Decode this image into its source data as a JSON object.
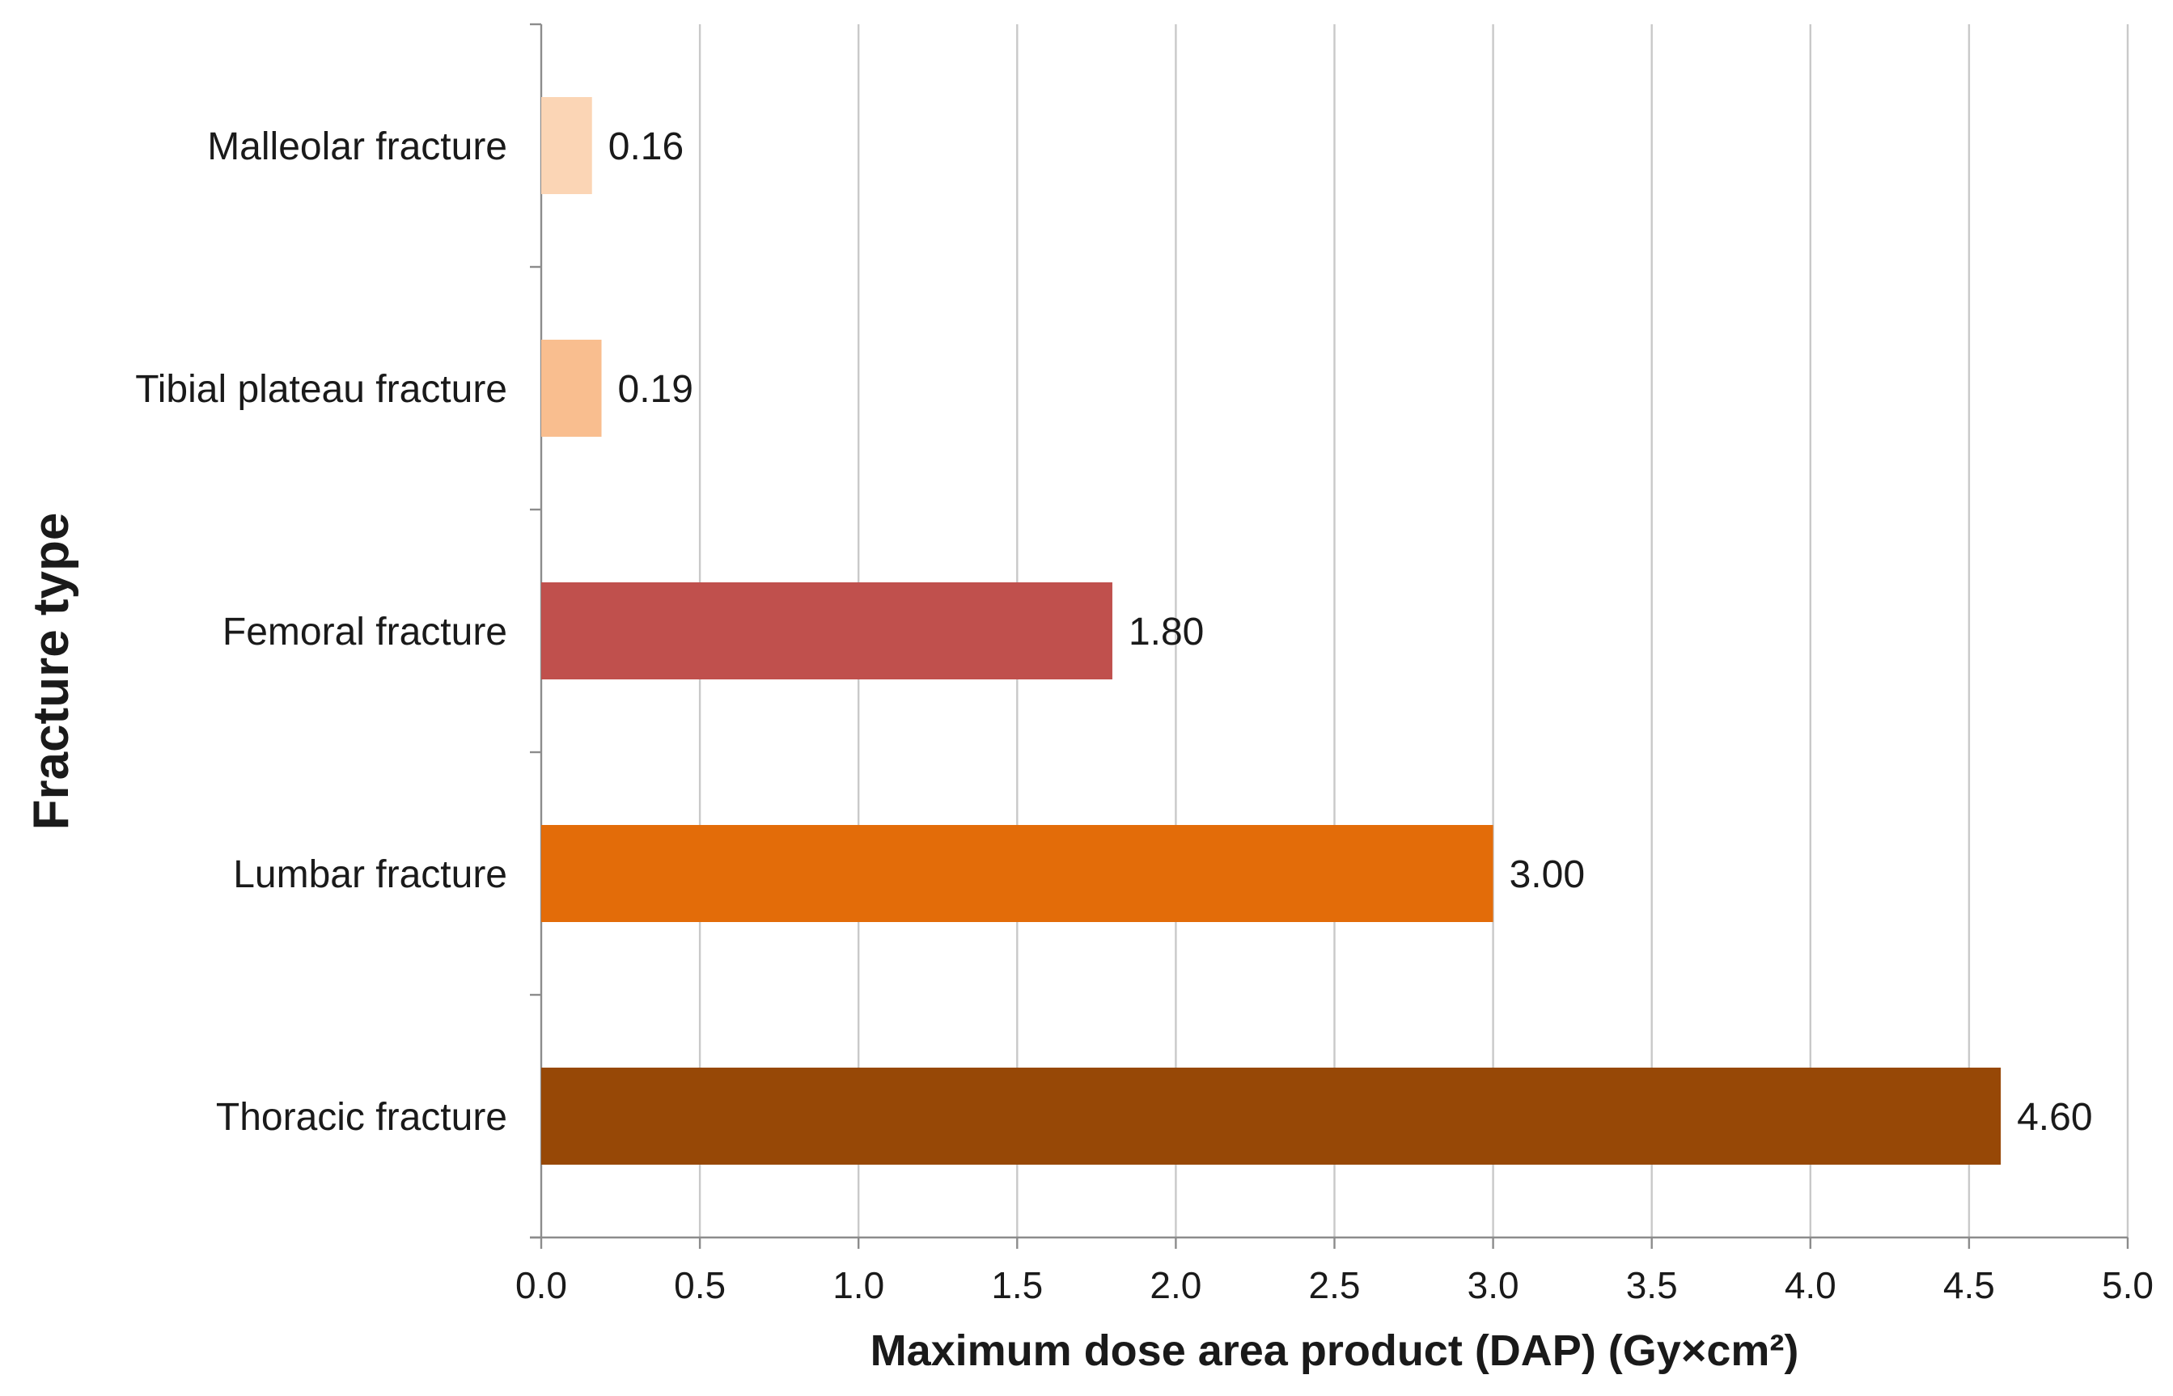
{
  "chart_data": {
    "type": "bar",
    "orientation": "horizontal",
    "categories": [
      "Malleolar fracture",
      "Tibial plateau fracture",
      "Femoral fracture",
      "Lumbar fracture",
      "Thoracic fracture"
    ],
    "values": [
      0.16,
      0.19,
      1.8,
      3.0,
      4.6
    ],
    "value_labels": [
      "0.16",
      "0.19",
      "1.80",
      "3.00",
      "4.60"
    ],
    "bar_colors": [
      "#fbd5b5",
      "#f9be8f",
      "#c0504d",
      "#e36c09",
      "#974806"
    ],
    "xlabel": "Maximum dose area product (DAP) (Gy×cm²)",
    "ylabel": "Fracture type",
    "xlim": [
      0,
      5.0
    ],
    "xticks": [
      0.0,
      0.5,
      1.0,
      1.5,
      2.0,
      2.5,
      3.0,
      3.5,
      4.0,
      4.5,
      5.0
    ],
    "xtick_labels": [
      "0.0",
      "0.5",
      "1.0",
      "1.5",
      "2.0",
      "2.5",
      "3.0",
      "3.5",
      "4.0",
      "4.5",
      "5.0"
    ],
    "grid": "vertical",
    "legend": "none"
  }
}
